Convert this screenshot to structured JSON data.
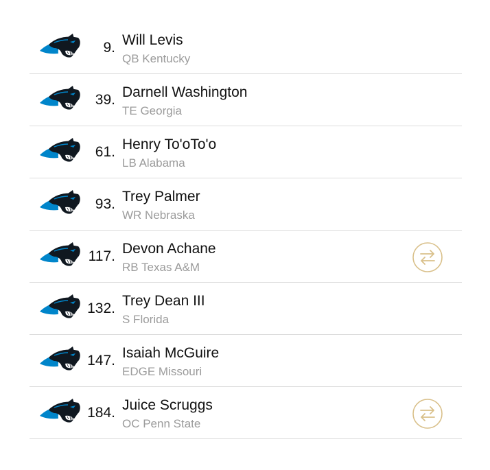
{
  "team_icon": "carolina-panthers-logo",
  "colors": {
    "panther_blue": "#0085ca",
    "panther_black": "#101820",
    "subtext": "#9b9b9b",
    "trade_gold": "#d9c08a",
    "divider": "#dcdcdc"
  },
  "picks": [
    {
      "number": "9.",
      "name": "Will Levis",
      "detail": "QB Kentucky",
      "traded": false
    },
    {
      "number": "39.",
      "name": "Darnell Washington",
      "detail": "TE Georgia",
      "traded": false
    },
    {
      "number": "61.",
      "name": "Henry To'oTo'o",
      "detail": "LB Alabama",
      "traded": false
    },
    {
      "number": "93.",
      "name": "Trey Palmer",
      "detail": "WR Nebraska",
      "traded": false
    },
    {
      "number": "117.",
      "name": "Devon Achane",
      "detail": "RB Texas A&M",
      "traded": true
    },
    {
      "number": "132.",
      "name": "Trey Dean III",
      "detail": "S Florida",
      "traded": false
    },
    {
      "number": "147.",
      "name": "Isaiah McGuire",
      "detail": "EDGE Missouri",
      "traded": false
    },
    {
      "number": "184.",
      "name": "Juice Scruggs",
      "detail": "OC Penn State",
      "traded": true
    }
  ]
}
